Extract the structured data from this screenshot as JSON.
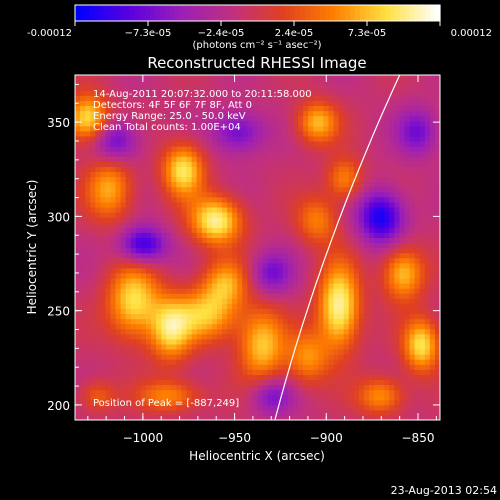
{
  "chart_data": {
    "type": "heatmap",
    "title": "Reconstructed RHESSI Image",
    "xlabel": "Heliocentric X (arcsec)",
    "ylabel": "Heliocentric Y (arcsec)",
    "xlim": [
      -1037,
      -838
    ],
    "ylim": [
      192,
      375
    ],
    "xticks": [
      -1000,
      -950,
      -900,
      -850
    ],
    "xtick_labels": [
      "−1000",
      "−950",
      "−900",
      "−850"
    ],
    "yticks": [
      200,
      250,
      300,
      350
    ],
    "ytick_labels": [
      "200",
      "250",
      "300",
      "350"
    ],
    "colorbar": {
      "min": -0.00012,
      "max": 0.00012,
      "tick_labels": [
        "-0.00012",
        "−7.3e-05",
        "−2.4e-05",
        "2.4e-05",
        "7.3e-05",
        "0.00012"
      ],
      "unit_label": "(photons cm⁻² s⁻¹ asec⁻²)",
      "colors": [
        "#0000ff",
        "#5a00e0",
        "#9a1fb8",
        "#c03080",
        "#e04020",
        "#ff8000",
        "#ffe040",
        "#ffffff"
      ]
    },
    "annotations": [
      "14-Aug-2011 20:07:32.000 to 20:11:58.000",
      "Detectors: 4F 5F 6F 7F 8F, Att 0",
      "Energy Range: 25.0 - 50.0 keV",
      "Clean    Total counts: 1.00E+04"
    ],
    "peak_label": "Position of Peak = [-887,249]",
    "peak": {
      "x": -887,
      "y": 249
    },
    "sources": [
      {
        "x": -1030,
        "y": 352,
        "sx": 8,
        "sy": 9,
        "amp": 0.9
      },
      {
        "x": -1018,
        "y": 315,
        "sx": 9,
        "sy": 12,
        "amp": 0.65
      },
      {
        "x": -1005,
        "y": 255,
        "sx": 10,
        "sy": 14,
        "amp": 0.85
      },
      {
        "x": -985,
        "y": 240,
        "sx": 8,
        "sy": 12,
        "amp": 0.75
      },
      {
        "x": -978,
        "y": 325,
        "sx": 8,
        "sy": 10,
        "amp": 0.85
      },
      {
        "x": -960,
        "y": 298,
        "sx": 10,
        "sy": 9,
        "amp": 0.95
      },
      {
        "x": -955,
        "y": 265,
        "sx": 9,
        "sy": 9,
        "amp": 0.6
      },
      {
        "x": -965,
        "y": 248,
        "sx": 12,
        "sy": 10,
        "amp": 0.7
      },
      {
        "x": -935,
        "y": 232,
        "sx": 9,
        "sy": 14,
        "amp": 0.75
      },
      {
        "x": -985,
        "y": 205,
        "sx": 12,
        "sy": 6,
        "amp": 0.55
      },
      {
        "x": -905,
        "y": 350,
        "sx": 8,
        "sy": 8,
        "amp": 0.7
      },
      {
        "x": -890,
        "y": 320,
        "sx": 7,
        "sy": 8,
        "amp": 0.55
      },
      {
        "x": -905,
        "y": 298,
        "sx": 8,
        "sy": 9,
        "amp": 0.5
      },
      {
        "x": -893,
        "y": 252,
        "sx": 8,
        "sy": 16,
        "amp": 1.0
      },
      {
        "x": -910,
        "y": 225,
        "sx": 8,
        "sy": 10,
        "amp": 0.55
      },
      {
        "x": -858,
        "y": 270,
        "sx": 8,
        "sy": 10,
        "amp": 0.75
      },
      {
        "x": -848,
        "y": 232,
        "sx": 7,
        "sy": 10,
        "amp": 0.85
      },
      {
        "x": -870,
        "y": 205,
        "sx": 9,
        "sy": 7,
        "amp": 0.6
      },
      {
        "x": -1025,
        "y": 205,
        "sx": 7,
        "sy": 6,
        "amp": 0.4
      },
      {
        "x": -1000,
        "y": 285,
        "sx": 9,
        "sy": 7,
        "amp": -0.8
      },
      {
        "x": -1015,
        "y": 340,
        "sx": 9,
        "sy": 8,
        "amp": -0.6
      },
      {
        "x": -948,
        "y": 345,
        "sx": 10,
        "sy": 8,
        "amp": -0.55
      },
      {
        "x": -930,
        "y": 270,
        "sx": 8,
        "sy": 8,
        "amp": -0.5
      },
      {
        "x": -870,
        "y": 300,
        "sx": 9,
        "sy": 10,
        "amp": -0.85
      },
      {
        "x": -850,
        "y": 345,
        "sx": 8,
        "sy": 9,
        "amp": -0.5
      },
      {
        "x": -930,
        "y": 205,
        "sx": 8,
        "sy": 7,
        "amp": -0.5
      }
    ]
  },
  "timestamp": "23-Aug-2013 02:54"
}
